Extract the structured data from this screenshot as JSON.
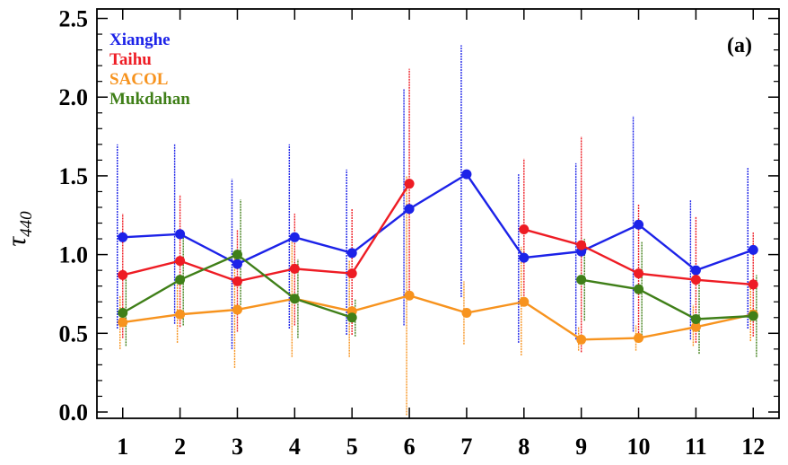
{
  "chart_data": {
    "type": "line",
    "title": "",
    "panel_label": "(a)",
    "ylabel": "τ",
    "ylabel_subscript": "440",
    "xlabel": "",
    "x": [
      1,
      2,
      3,
      4,
      5,
      6,
      7,
      8,
      9,
      10,
      11,
      12
    ],
    "x_tick_labels": [
      "1",
      "2",
      "3",
      "4",
      "5",
      "6",
      "7",
      "8",
      "9",
      "10",
      "11",
      "12"
    ],
    "xlim": [
      0.55,
      12.45
    ],
    "ylim": [
      -0.04,
      2.56
    ],
    "y_ticks": [
      0.0,
      0.5,
      1.0,
      1.5,
      2.0,
      2.5
    ],
    "y_tick_labels": [
      "0.0",
      "0.5",
      "1.0",
      "1.5",
      "2.0",
      "2.5"
    ],
    "grid": false,
    "legend_position": "top-left",
    "series": [
      {
        "name": "Xianghe",
        "color": "#1c22e8",
        "x_offset": -0.1,
        "values": [
          1.11,
          1.13,
          0.94,
          1.11,
          1.01,
          1.29,
          1.51,
          0.98,
          1.02,
          1.19,
          0.9,
          1.03
        ],
        "low": [
          0.53,
          0.56,
          0.4,
          0.53,
          0.49,
          0.55,
          0.73,
          0.44,
          0.46,
          0.51,
          0.46,
          0.53
        ],
        "high": [
          1.7,
          1.7,
          1.48,
          1.7,
          1.54,
          2.05,
          2.33,
          1.51,
          1.58,
          1.88,
          1.35,
          1.55
        ]
      },
      {
        "name": "Taihu",
        "color": "#ee1c24",
        "x_offset": 0.0,
        "values": [
          0.87,
          0.96,
          0.83,
          0.91,
          0.88,
          1.45,
          null,
          1.16,
          1.06,
          0.88,
          0.84,
          0.81
        ],
        "low": [
          0.47,
          0.54,
          0.51,
          0.55,
          0.49,
          0.72,
          null,
          0.72,
          0.38,
          0.45,
          0.44,
          0.48
        ],
        "high": [
          1.26,
          1.38,
          1.16,
          1.26,
          1.29,
          2.18,
          null,
          1.61,
          1.75,
          1.32,
          1.24,
          1.14
        ]
      },
      {
        "name": "SACOL",
        "color": "#f7931e",
        "x_offset": -0.05,
        "values": [
          0.57,
          0.62,
          0.65,
          0.72,
          0.64,
          0.74,
          0.63,
          0.7,
          0.46,
          0.47,
          0.54,
          0.62
        ],
        "low": [
          0.4,
          0.44,
          0.28,
          0.35,
          0.35,
          -0.02,
          0.43,
          0.36,
          0.39,
          0.39,
          0.42,
          0.45
        ],
        "high": [
          0.74,
          0.83,
          1.0,
          1.12,
          0.96,
          1.5,
          0.83,
          1.05,
          0.54,
          0.55,
          0.68,
          0.8
        ]
      },
      {
        "name": "Mukdahan",
        "color": "#3f7f18",
        "x_offset": 0.06,
        "values": [
          0.63,
          0.84,
          1.0,
          0.72,
          0.6,
          null,
          null,
          null,
          0.84,
          0.78,
          0.59,
          0.61
        ],
        "low": [
          0.42,
          0.55,
          0.68,
          0.47,
          0.48,
          null,
          null,
          null,
          0.58,
          0.47,
          0.37,
          0.35
        ],
        "high": [
          0.85,
          1.13,
          1.35,
          0.97,
          0.72,
          null,
          null,
          null,
          1.1,
          1.08,
          0.82,
          0.87
        ]
      }
    ]
  }
}
